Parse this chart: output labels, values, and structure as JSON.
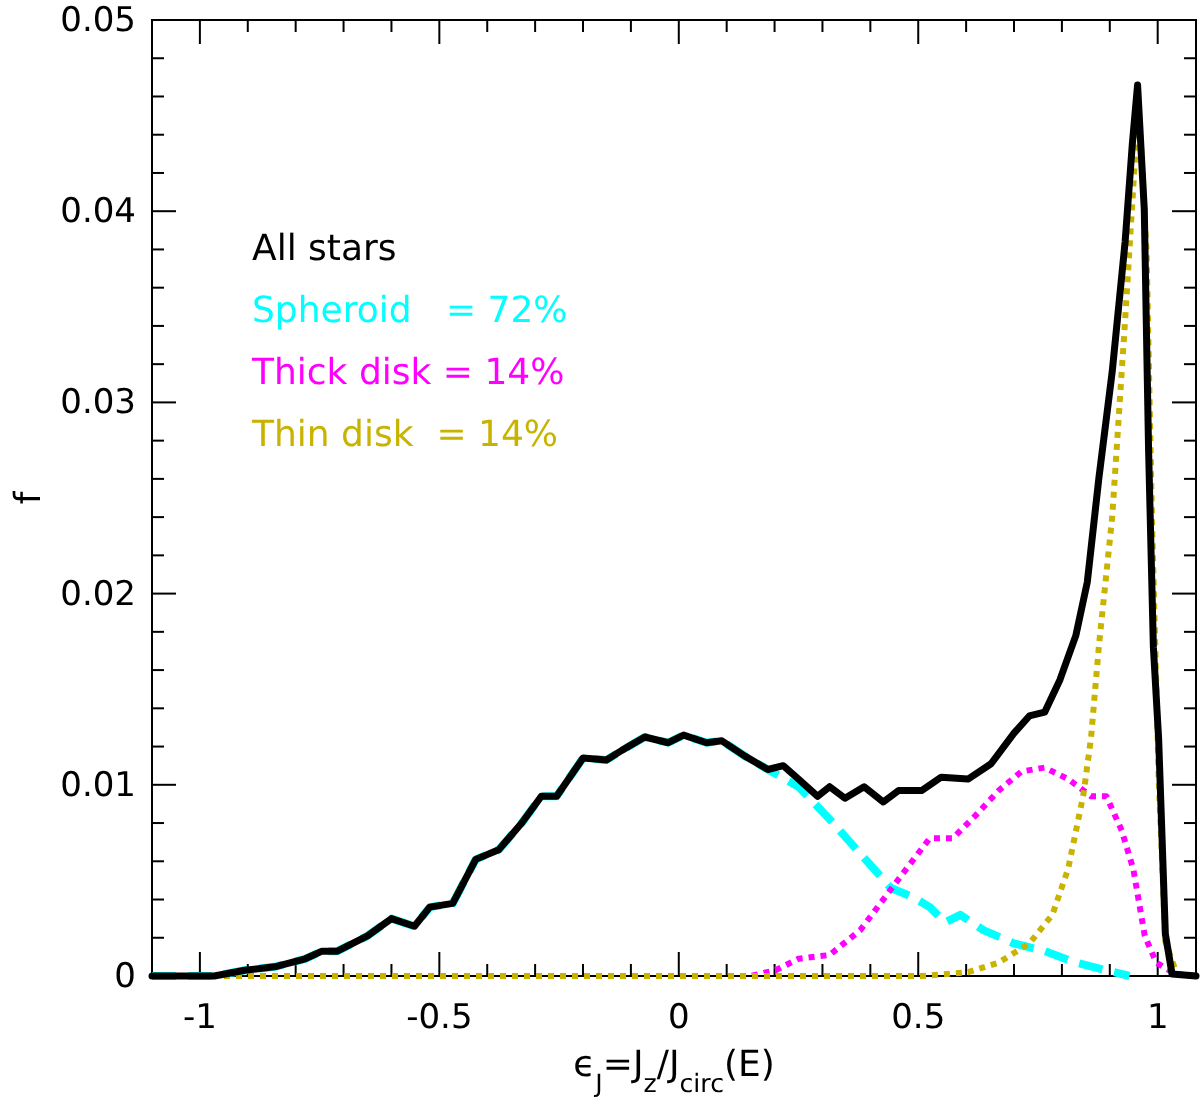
{
  "chart_data": {
    "type": "line",
    "xlabel": "ϵ$_{J}$=J$_{z}$/J$_{circ}$(E)",
    "ylabel": "f",
    "xlim": [
      -1.1,
      1.08
    ],
    "ylim": [
      0,
      0.05
    ],
    "xticks": [
      {
        "value": -1.1,
        "label": null
      },
      -1,
      {
        "value": -0.9,
        "label": null
      },
      {
        "value": -0.8,
        "label": null
      },
      {
        "value": -0.7,
        "label": null
      },
      {
        "value": -0.6,
        "label": null
      },
      -0.5,
      {
        "value": -0.4,
        "label": null
      },
      {
        "value": -0.3,
        "label": null
      },
      {
        "value": -0.2,
        "label": null
      },
      {
        "value": -0.1,
        "label": null
      },
      0,
      {
        "value": 0.1,
        "label": null
      },
      {
        "value": 0.2,
        "label": null
      },
      {
        "value": 0.3,
        "label": null
      },
      {
        "value": 0.4,
        "label": null
      },
      0.5,
      {
        "value": 0.6,
        "label": null
      },
      {
        "value": 0.7,
        "label": null
      },
      {
        "value": 0.8,
        "label": null
      },
      {
        "value": 0.9,
        "label": null
      },
      1
    ],
    "yticks": [
      0,
      {
        "value": 0.002,
        "label": null
      },
      {
        "value": 0.004,
        "label": null
      },
      {
        "value": 0.006,
        "label": null
      },
      {
        "value": 0.008,
        "label": null
      },
      0.01,
      {
        "value": 0.012,
        "label": null
      },
      {
        "value": 0.014,
        "label": null
      },
      {
        "value": 0.016,
        "label": null
      },
      {
        "value": 0.018,
        "label": null
      },
      0.02,
      {
        "value": 0.022,
        "label": null
      },
      {
        "value": 0.024,
        "label": null
      },
      {
        "value": 0.026,
        "label": null
      },
      {
        "value": 0.028,
        "label": null
      },
      0.03,
      {
        "value": 0.032,
        "label": null
      },
      {
        "value": 0.034,
        "label": null
      },
      {
        "value": 0.036,
        "label": null
      },
      {
        "value": 0.038,
        "label": null
      },
      0.04,
      {
        "value": 0.042,
        "label": null
      },
      {
        "value": 0.044,
        "label": null
      },
      {
        "value": 0.046,
        "label": null
      },
      {
        "value": 0.048,
        "label": null
      },
      0.05
    ],
    "legend": "top left",
    "grid": false,
    "series": [
      {
        "name": "Spheroid   = 72%",
        "color": "#00ffff",
        "line_style": "dashed",
        "x": [
          -1.1,
          -0.97,
          -0.906,
          -0.84,
          -0.78,
          -0.745,
          -0.713,
          -0.65,
          -0.6,
          -0.552,
          -0.52,
          -0.472,
          -0.424,
          -0.376,
          -0.328,
          -0.287,
          -0.255,
          -0.2,
          -0.151,
          -0.119,
          -0.071,
          -0.022,
          0.01,
          0.058,
          0.09,
          0.138,
          0.186,
          0.25,
          0.315,
          0.379,
          0.443,
          0.491,
          0.524,
          0.556,
          0.588,
          0.636,
          0.7,
          0.764,
          0.829,
          0.893,
          0.941
        ],
        "values": [
          0,
          0,
          0.0003,
          0.0005,
          0.0009,
          0.0013,
          0.0013,
          0.0021,
          0.003,
          0.0026,
          0.0036,
          0.0038,
          0.0061,
          0.0066,
          0.008,
          0.0094,
          0.0094,
          0.0114,
          0.0113,
          0.0118,
          0.0125,
          0.0122,
          0.0126,
          0.0122,
          0.0123,
          0.0115,
          0.0108,
          0.0099,
          0.0082,
          0.0064,
          0.0046,
          0.0041,
          0.0036,
          0.0028,
          0.0032,
          0.0024,
          0.0017,
          0.0013,
          0.0007,
          0.0003,
          0
        ]
      },
      {
        "name": "Thick disk = 14%",
        "color": "#ff00ff",
        "line_style": "dotted",
        "x": [
          -1.1,
          0.15,
          0.202,
          0.25,
          0.315,
          0.379,
          0.427,
          0.475,
          0.524,
          0.572,
          0.62,
          0.668,
          0.716,
          0.764,
          0.813,
          0.861,
          0.893,
          0.925,
          0.949,
          0.973,
          0.997,
          1.037,
          1.08
        ],
        "values": [
          0,
          0,
          0.0003,
          0.0009,
          0.0011,
          0.0024,
          0.004,
          0.0056,
          0.0072,
          0.0072,
          0.0084,
          0.0097,
          0.0107,
          0.0109,
          0.0103,
          0.0094,
          0.0094,
          0.0076,
          0.0056,
          0.0021,
          0.0007,
          0.0001,
          0
        ]
      },
      {
        "name": "Thin disk  = 14%",
        "color": "#c8b400",
        "line_style": "dotted",
        "x": [
          -1.1,
          0.507,
          0.604,
          0.668,
          0.732,
          0.78,
          0.813,
          0.845,
          0.861,
          0.877,
          0.905,
          0.932,
          0.953,
          0.963,
          0.977,
          0.988,
          1.002,
          1.016,
          1.04,
          1.08
        ],
        "values": [
          0,
          0,
          0.0002,
          0.0007,
          0.0017,
          0.0032,
          0.0056,
          0.0095,
          0.0125,
          0.0172,
          0.024,
          0.0343,
          0.0429,
          0.0445,
          0.0377,
          0.024,
          0.0104,
          0.0018,
          0.0001,
          0
        ]
      },
      {
        "name": "All stars",
        "color": "#000000",
        "line_style": "solid",
        "x": [
          -1.1,
          -0.97,
          -0.906,
          -0.84,
          -0.78,
          -0.745,
          -0.713,
          -0.65,
          -0.6,
          -0.552,
          -0.52,
          -0.472,
          -0.424,
          -0.376,
          -0.328,
          -0.287,
          -0.255,
          -0.2,
          -0.151,
          -0.119,
          -0.071,
          -0.022,
          0.01,
          0.058,
          0.09,
          0.138,
          0.186,
          0.218,
          0.25,
          0.29,
          0.315,
          0.347,
          0.387,
          0.427,
          0.459,
          0.507,
          0.548,
          0.604,
          0.652,
          0.7,
          0.732,
          0.764,
          0.796,
          0.829,
          0.853,
          0.877,
          0.905,
          0.932,
          0.947,
          0.958,
          0.972,
          0.981,
          0.991,
          1.002,
          1.016,
          1.03,
          1.08
        ],
        "values": [
          0,
          0,
          0.0003,
          0.0005,
          0.0009,
          0.0013,
          0.0013,
          0.0021,
          0.003,
          0.0026,
          0.0036,
          0.0038,
          0.0061,
          0.0066,
          0.008,
          0.0094,
          0.0094,
          0.0114,
          0.0113,
          0.0118,
          0.0125,
          0.0122,
          0.0126,
          0.0122,
          0.0123,
          0.0115,
          0.0108,
          0.011,
          0.0103,
          0.0094,
          0.0099,
          0.0093,
          0.0099,
          0.0091,
          0.0097,
          0.0097,
          0.0104,
          0.0103,
          0.0111,
          0.0127,
          0.0136,
          0.0138,
          0.0155,
          0.0178,
          0.0206,
          0.026,
          0.0316,
          0.0384,
          0.0435,
          0.0466,
          0.0401,
          0.0275,
          0.0172,
          0.0124,
          0.0022,
          0.0001,
          0
        ]
      }
    ]
  }
}
